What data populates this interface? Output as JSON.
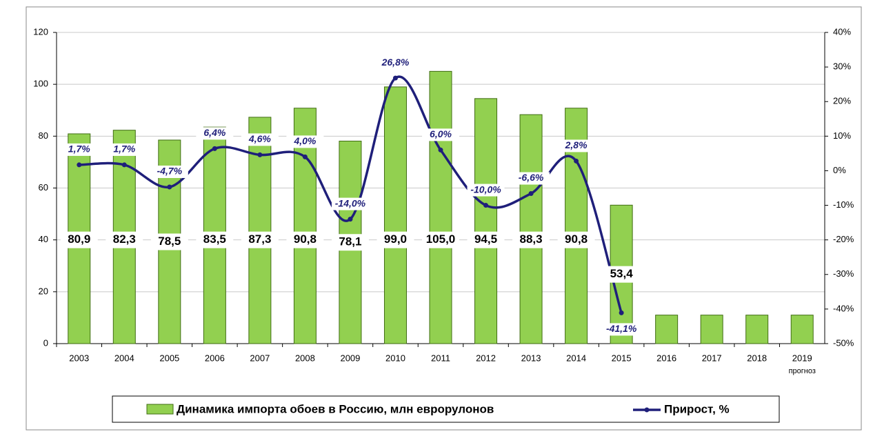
{
  "chart_data": {
    "type": "combo",
    "categories": [
      "2003",
      "2004",
      "2005",
      "2006",
      "2007",
      "2008",
      "2009",
      "2010",
      "2011",
      "2012",
      "2013",
      "2014",
      "2015",
      "2016",
      "2017",
      "2018",
      "2019"
    ],
    "category_note": "прогноз",
    "series": [
      {
        "name": "Динамика импорта обоев в Россию, млн еврорулонов",
        "type": "bar",
        "color": "#92d050",
        "values": [
          80.9,
          82.3,
          78.5,
          83.5,
          87.3,
          90.8,
          78.1,
          99.0,
          105.0,
          94.5,
          88.3,
          90.8,
          53.4,
          11,
          11,
          11,
          11
        ],
        "value_labels": [
          "80,9",
          "82,3",
          "78,5",
          "83,5",
          "87,3",
          "90,8",
          "78,1",
          "99,0",
          "105,0",
          "94,5",
          "88,3",
          "90,8",
          "53,4",
          null,
          null,
          null,
          null
        ]
      },
      {
        "name": "Прирост, %",
        "type": "line",
        "axis": "y2",
        "color": "#1f1f7a",
        "values": [
          1.7,
          1.7,
          -4.7,
          6.4,
          4.6,
          4.0,
          -14.0,
          26.8,
          6.0,
          -10.0,
          -6.6,
          2.8,
          -41.1,
          null,
          null,
          null,
          null
        ],
        "value_labels": [
          "1,7%",
          "1,7%",
          "-4,7%",
          "6,4%",
          "4,6%",
          "4,0%",
          "-14,0%",
          "26,8%",
          "6,0%",
          "-10,0%",
          "-6,6%",
          "2,8%",
          "-41,1%",
          null,
          null,
          null,
          null
        ]
      }
    ],
    "ylim": [
      0,
      120
    ],
    "yticks": [
      0,
      20,
      40,
      60,
      80,
      100,
      120
    ],
    "y2lim": [
      -50,
      40
    ],
    "y2ticks": [
      {
        "value": -50,
        "label": "-50%"
      },
      {
        "value": -40,
        "label": "-40%"
      },
      {
        "value": -30,
        "label": "-30%"
      },
      {
        "value": -20,
        "label": "-20%"
      },
      {
        "value": -10,
        "label": "-10%"
      },
      {
        "value": 0,
        "label": "0%"
      },
      {
        "value": 10,
        "label": "10%"
      },
      {
        "value": 20,
        "label": "20%"
      },
      {
        "value": 30,
        "label": "30%"
      },
      {
        "value": 40,
        "label": "40%"
      }
    ],
    "grid": true,
    "legend": "bottom"
  }
}
